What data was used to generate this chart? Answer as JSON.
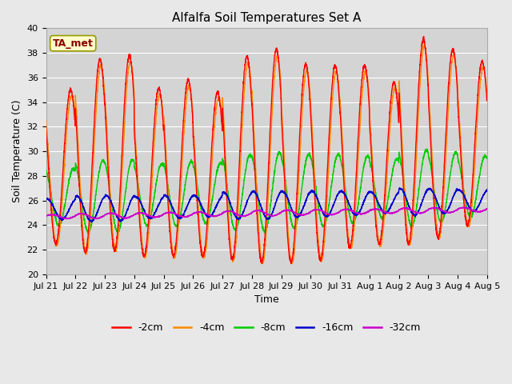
{
  "title": "Alfalfa Soil Temperatures Set A",
  "xlabel": "Time",
  "ylabel": "Soil Temperature (C)",
  "ylim": [
    20,
    40
  ],
  "background_color": "#e8e8e8",
  "plot_bg_color": "#d4d4d4",
  "annotation_text": "TA_met",
  "annotation_color": "#8b0000",
  "annotation_bg": "#ffffcc",
  "annotation_edge": "#999900",
  "tick_labels": [
    "Jul 21",
    "Jul 22",
    "Jul 23",
    "Jul 24",
    "Jul 25",
    "Jul 26",
    "Jul 27",
    "Jul 28",
    "Jul 29",
    "Jul 30",
    "Jul 31",
    "Aug 1",
    "Aug 2",
    "Aug 3",
    "Aug 4",
    "Aug 5"
  ],
  "tick_positions": [
    0,
    24,
    48,
    72,
    96,
    120,
    144,
    168,
    192,
    216,
    240,
    264,
    288,
    312,
    336,
    360
  ],
  "series_colors": [
    "#ff0000",
    "#ff8800",
    "#00cc00",
    "#0000cc",
    "#cc00cc"
  ],
  "series_names": [
    "-2cm",
    "-4cm",
    "-8cm",
    "-16cm",
    "-32cm"
  ],
  "grid_color": "#ffffff",
  "title_fontsize": 11,
  "axis_fontsize": 9,
  "tick_fontsize": 8,
  "legend_fontsize": 9
}
